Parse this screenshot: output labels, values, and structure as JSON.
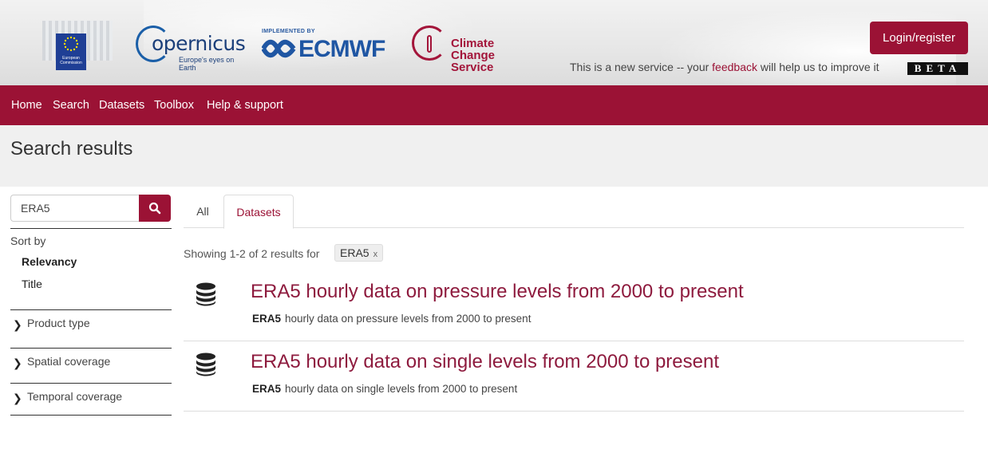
{
  "header": {
    "eu_caption": "European Commission",
    "copernicus_word": "opernicus",
    "copernicus_tagline": "Europe's eyes on Earth",
    "ecmwf_implemented_by": "IMPLEMENTED BY",
    "ecmwf_word": "ECMWF",
    "ccs_line1": "Climate Change",
    "ccs_line2": "Service",
    "login_label": "Login/register",
    "feedback_prefix": "This is a new service -- your ",
    "feedback_link": "feedback",
    "feedback_suffix": " will help us to improve it",
    "beta_label": "BETA"
  },
  "nav": {
    "items": [
      "Home",
      "Search",
      "Datasets",
      "Toolbox",
      "Help & support"
    ]
  },
  "page": {
    "title": "Search results"
  },
  "sidebar": {
    "search_value": "ERA5",
    "sort_by_label": "Sort by",
    "sort_options": [
      "Relevancy",
      "Title"
    ],
    "facets": [
      "Product type",
      "Spatial coverage",
      "Temporal coverage"
    ]
  },
  "main": {
    "tabs": [
      "All",
      "Datasets"
    ],
    "active_tab": "Datasets",
    "showing_text": "Showing 1-2 of 2 results for",
    "filter_chip": "ERA5",
    "filter_chip_close": "x",
    "results": [
      {
        "title": "ERA5 hourly data on pressure levels from 2000 to present",
        "desc_bold": "ERA5",
        "desc_rest": "hourly data on pressure levels from 2000 to present"
      },
      {
        "title": "ERA5 hourly data on single levels from 2000 to present",
        "desc_bold": "ERA5",
        "desc_rest": "hourly data on single levels from 2000 to present"
      }
    ]
  },
  "colors": {
    "brand": "#9b1235",
    "result_title": "#8e1b3e"
  },
  "icons": {
    "search_button": "search-icon",
    "facet_toggle": "chevron-right-icon",
    "result_type": "database-icon"
  }
}
